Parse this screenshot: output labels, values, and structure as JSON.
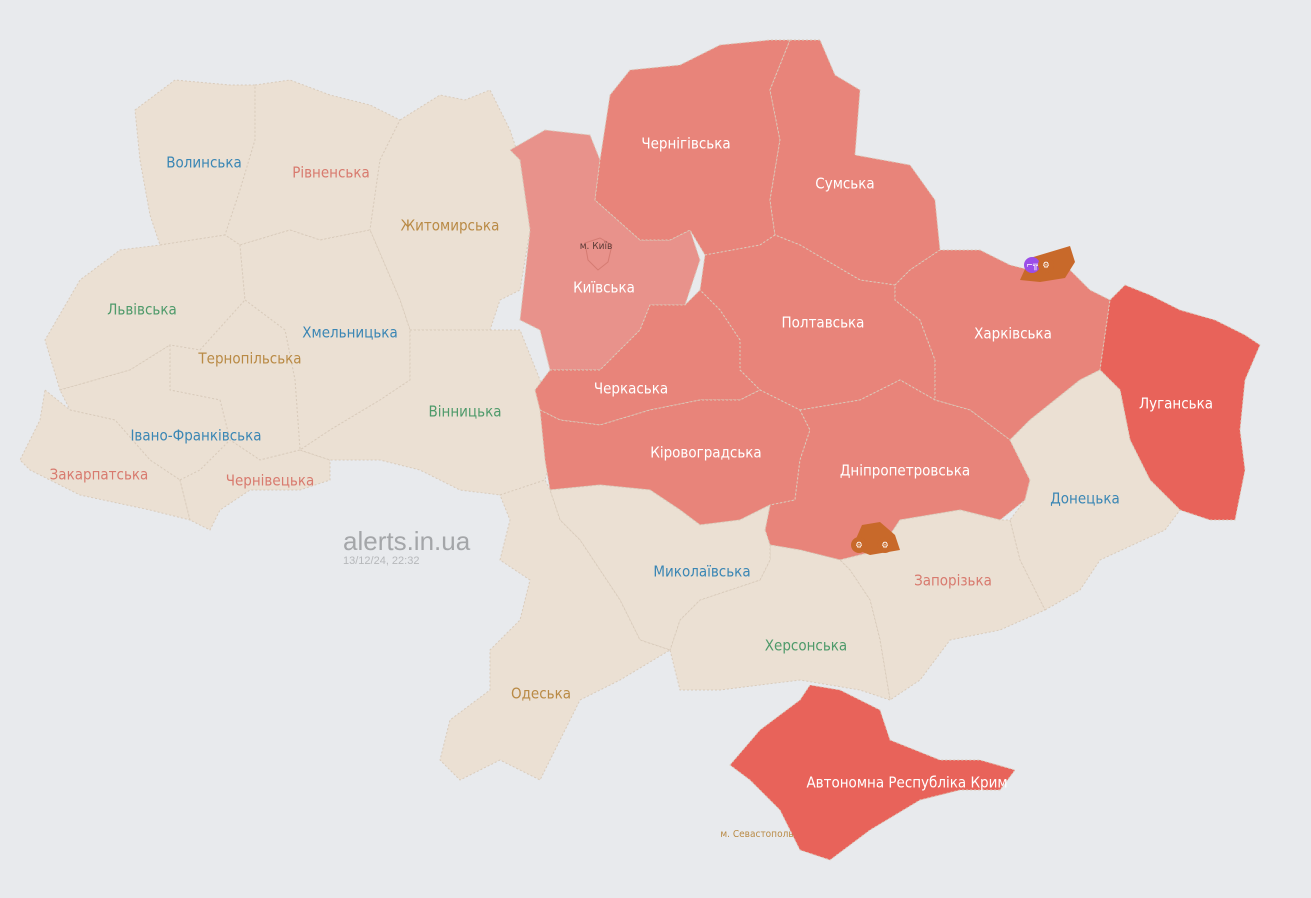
{
  "colors": {
    "background": "#e8eaed",
    "no_alert": "#ebe0d3",
    "alert": "#e8847a",
    "alert_kyiv_region": "#e8928b",
    "alert_strong": "#e8635a",
    "front_zone": "#c8692a",
    "ground_combat_icon": "#9b4de8"
  },
  "watermark": {
    "site": "alerts.in.ua",
    "timestamp": "13/12/24, 22:32"
  },
  "regions": [
    {
      "id": "volynska",
      "label": "Волинська",
      "status": "none",
      "label_color": "#3a86b4"
    },
    {
      "id": "rivnenska",
      "label": "Рівненська",
      "status": "none",
      "label_color": "#d87a6e"
    },
    {
      "id": "zhytomyrska",
      "label": "Житомирська",
      "status": "none",
      "label_color": "#b98a45"
    },
    {
      "id": "lvivska",
      "label": "Львівська",
      "status": "none",
      "label_color": "#4e9a6a"
    },
    {
      "id": "khmelnytska",
      "label": "Хмельницька",
      "status": "none",
      "label_color": "#3a86b4"
    },
    {
      "id": "ternopilska",
      "label": "Тернопільська",
      "status": "none",
      "label_color": "#b98a45"
    },
    {
      "id": "ivano-frankivska",
      "label": "Івано-Франківська",
      "status": "none",
      "label_color": "#3a86b4"
    },
    {
      "id": "zakarpatska",
      "label": "Закарпатська",
      "status": "none",
      "label_color": "#d87a6e"
    },
    {
      "id": "chernivetska",
      "label": "Чернівецька",
      "status": "none",
      "label_color": "#d87a6e"
    },
    {
      "id": "vinnytska",
      "label": "Вінницька",
      "status": "none",
      "label_color": "#4e9a6a"
    },
    {
      "id": "kyivska",
      "label": "Київська",
      "status": "alert_light",
      "label_color": "#ffffff"
    },
    {
      "id": "chernihivska",
      "label": "Чернігівська",
      "status": "alert",
      "label_color": "#ffffff"
    },
    {
      "id": "sumska",
      "label": "Сумська",
      "status": "alert",
      "label_color": "#ffffff"
    },
    {
      "id": "poltavska",
      "label": "Полтавська",
      "status": "alert",
      "label_color": "#ffffff"
    },
    {
      "id": "kharkivska",
      "label": "Харківська",
      "status": "alert",
      "label_color": "#ffffff"
    },
    {
      "id": "luhanska",
      "label": "Луганська",
      "status": "alert_strong",
      "label_color": "#ffffff"
    },
    {
      "id": "cherkaska",
      "label": "Черкаська",
      "status": "alert",
      "label_color": "#ffffff"
    },
    {
      "id": "kirovohradska",
      "label": "Кіровоградська",
      "status": "alert",
      "label_color": "#ffffff"
    },
    {
      "id": "dnipropetrovska",
      "label": "Дніпропетровська",
      "status": "alert",
      "label_color": "#ffffff"
    },
    {
      "id": "donetska",
      "label": "Донецька",
      "status": "none",
      "label_color": "#3a86b4"
    },
    {
      "id": "zaporizka",
      "label": "Запорізька",
      "status": "none",
      "label_color": "#d87a6e"
    },
    {
      "id": "khersonska",
      "label": "Херсонська",
      "status": "none",
      "label_color": "#4e9a6a"
    },
    {
      "id": "mykolaivska",
      "label": "Миколаївська",
      "status": "none",
      "label_color": "#3a86b4"
    },
    {
      "id": "odeska",
      "label": "Одеська",
      "status": "none",
      "label_color": "#b98a45"
    },
    {
      "id": "crimea",
      "label": "Автономна Республіка Крим",
      "status": "alert_strong",
      "label_color": "#ffffff"
    }
  ],
  "cities": [
    {
      "id": "kyiv",
      "label": "м. Київ",
      "status": "alert_light",
      "label_color": "#5a3a36"
    },
    {
      "id": "sevastopol",
      "label": "м. Севастополь",
      "status": "none",
      "label_color": "#b98a45"
    }
  ],
  "markers": [
    {
      "type": "ground-combat",
      "icon": "rifle-icon"
    },
    {
      "type": "artillery",
      "icon": "artillery-icon"
    },
    {
      "type": "artillery",
      "icon": "artillery-icon"
    },
    {
      "type": "artillery",
      "icon": "artillery-icon"
    }
  ]
}
